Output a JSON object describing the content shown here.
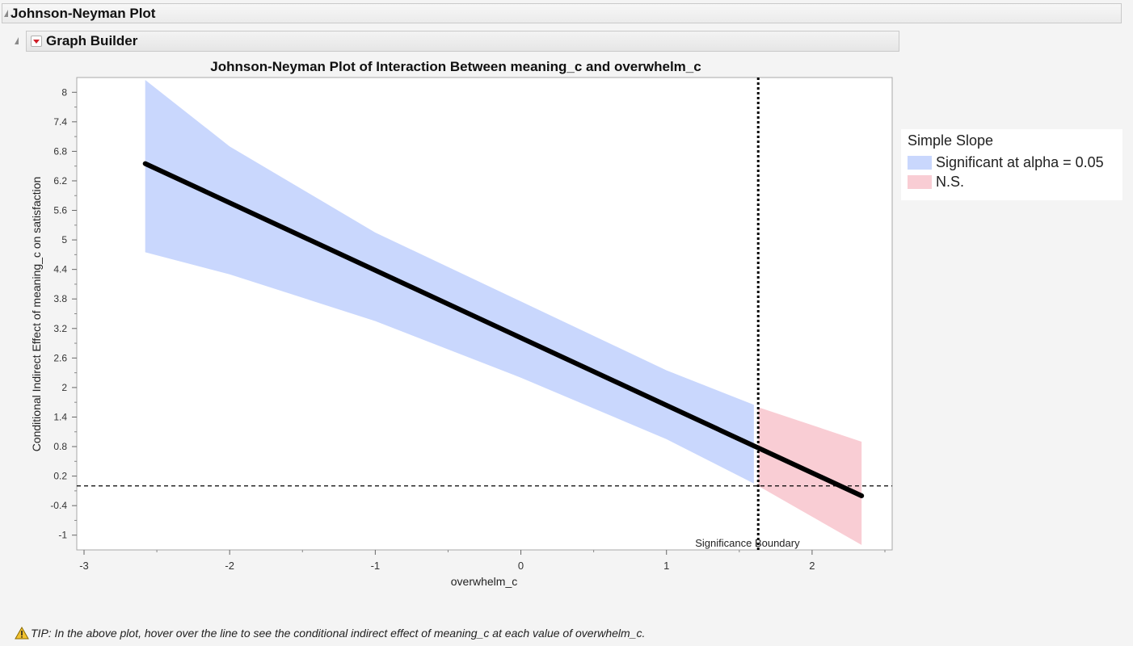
{
  "outline": {
    "title": "Johnson-Neyman Plot"
  },
  "graph_builder": {
    "title": "Graph Builder"
  },
  "legend": {
    "title": "Simple Slope",
    "items": [
      {
        "label": "Significant at alpha = 0.05",
        "color": "#c9d7fd"
      },
      {
        "label": "N.S.",
        "color": "#f9cdd4"
      }
    ]
  },
  "tip": {
    "text": "TIP: In the above plot, hover over the line to see the conditional indirect effect of meaning_c at each value of overwhelm_c."
  },
  "chart_data": {
    "type": "line",
    "title": "Johnson-Neyman Plot of Interaction Between meaning_c and overwhelm_c",
    "xlabel": "overwhelm_c",
    "ylabel": "Conditional Indirect Effect of meaning_c on satisfaction",
    "xlim": [
      -3.05,
      2.55
    ],
    "ylim": [
      -1.3,
      8.3
    ],
    "x_ticks": [
      -3,
      -2,
      -1,
      0,
      1,
      2
    ],
    "y_ticks": [
      8,
      7.4,
      6.8,
      6.2,
      5.6,
      5,
      4.4,
      3.8,
      3.2,
      2.6,
      2,
      1.4,
      0.8,
      0.2,
      -0.4,
      -1
    ],
    "line": {
      "x": [
        -2.58,
        2.34
      ],
      "y": [
        6.55,
        -0.2
      ]
    },
    "band_significant": {
      "x": [
        -2.58,
        -2,
        -1,
        0,
        1,
        1.6
      ],
      "upper": [
        8.25,
        6.9,
        5.15,
        3.75,
        2.35,
        1.65
      ],
      "lower": [
        4.75,
        4.3,
        3.35,
        2.2,
        0.95,
        0.05
      ]
    },
    "band_ns": {
      "x": [
        1.63,
        2.34
      ],
      "upper": [
        1.6,
        0.9
      ],
      "lower": [
        0.0,
        -1.2
      ]
    },
    "boundary": {
      "x": 1.63,
      "label": "Significance Boundary"
    },
    "reference_y": 0,
    "colors": {
      "significant": "#c9d7fd",
      "ns": "#f9cdd4",
      "line": "#000000"
    }
  }
}
